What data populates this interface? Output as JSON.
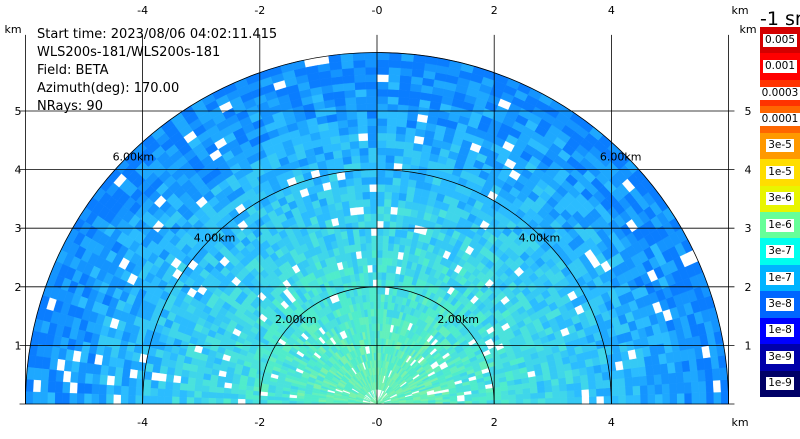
{
  "info": {
    "start_time": "Start time: 2023/08/06 04:02:11.415",
    "instrument": "WLS200s-181/WLS200s-181",
    "field": "Field: BETA",
    "azimuth": "Azimuth(deg): 170.00",
    "nrays": "NRays: 90"
  },
  "axes": {
    "x_ticks": [
      "-4",
      "-2",
      "-0",
      "2",
      "4"
    ],
    "y_ticks": [
      "1",
      "2",
      "3",
      "4",
      "5"
    ],
    "unit": "km"
  },
  "rings": {
    "labels": [
      "2.00km",
      "4.00km",
      "6.00km"
    ]
  },
  "colorbar": {
    "title": "-1 sr",
    "labels": [
      "0.005",
      "0.001",
      "0.0003",
      "0.0001",
      "3e-5",
      "1e-5",
      "3e-6",
      "1e-6",
      "3e-7",
      "1e-7",
      "3e-8",
      "1e-8",
      "3e-9",
      "1e-9"
    ],
    "colors": [
      "#d40000",
      "#ff0000",
      "#ff3300",
      "#ff6600",
      "#ff9900",
      "#ffdd00",
      "#e8f500",
      "#66ff99",
      "#00ffee",
      "#00b4ff",
      "#0066ff",
      "#0000ff",
      "#0000aa",
      "#000066"
    ]
  },
  "chart_data": {
    "type": "heatmap",
    "field": "BETA",
    "x_range_km": [
      -6.0,
      6.0
    ],
    "y_range_km": [
      0.0,
      6.0
    ],
    "range_rings_km": [
      2,
      4,
      6
    ],
    "grid": true
  }
}
